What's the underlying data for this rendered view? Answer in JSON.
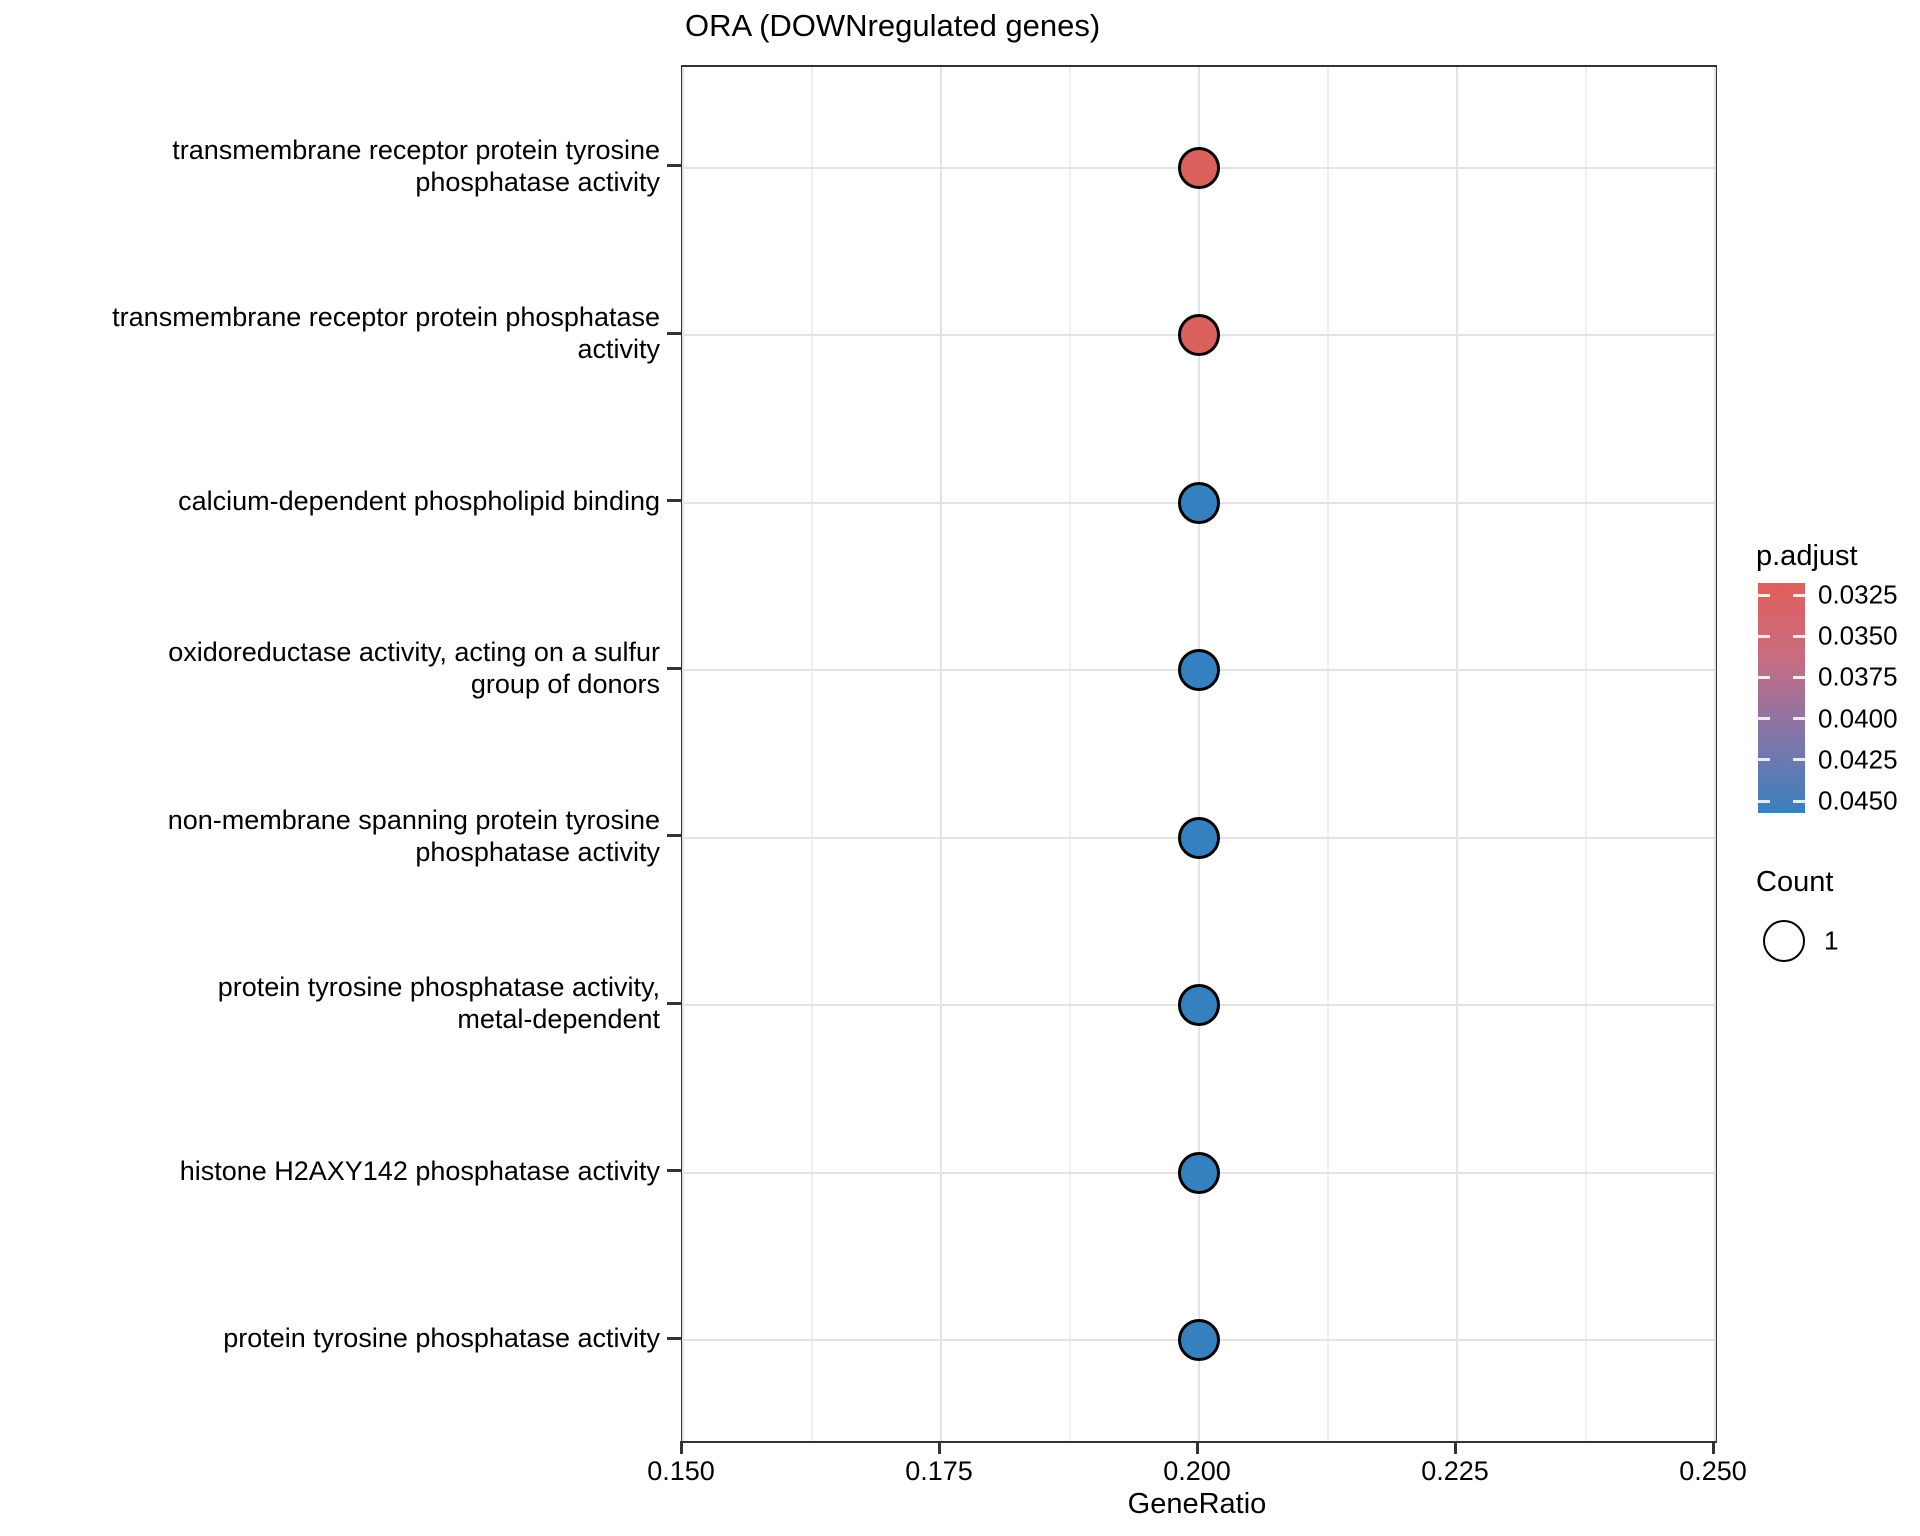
{
  "title": "ORA (DOWNregulated genes)",
  "axes": {
    "x_label": "GeneRatio",
    "x_tick_labels": [
      "0.150",
      "0.175",
      "0.200",
      "0.225",
      "0.250"
    ],
    "x_tick_values": [
      0.15,
      0.175,
      0.2,
      0.225,
      0.25
    ],
    "x_minor_values": [
      0.1625,
      0.1875,
      0.2125,
      0.2375
    ],
    "x_range": [
      0.15,
      0.25
    ]
  },
  "legend": {
    "p_adjust": {
      "title": "p.adjust",
      "tick_labels": [
        "0.0325",
        "0.0350",
        "0.0375",
        "0.0400",
        "0.0425",
        "0.0450"
      ],
      "tick_values": [
        0.0325,
        0.035,
        0.0375,
        0.04,
        0.0425,
        0.045
      ],
      "color_top": "#E05E5B",
      "color_mid": "#A67199",
      "color_bottom": "#3A80BE"
    },
    "count": {
      "title": "Count",
      "key_label": "1"
    }
  },
  "chart_data": {
    "type": "scatter",
    "subtype": "dotplot",
    "title": "ORA (DOWNregulated genes)",
    "xlabel": "GeneRatio",
    "xlim": [
      0.15,
      0.25
    ],
    "grid": true,
    "legend_position": "right",
    "categories": [
      "transmembrane receptor protein tyrosine\nphosphatase activity",
      "transmembrane receptor protein phosphatase\nactivity",
      "calcium-dependent phospholipid binding",
      "oxidoreductase activity, acting on a sulfur\ngroup of donors",
      "non-membrane spanning protein tyrosine\nphosphatase activity",
      "protein tyrosine phosphatase activity,\nmetal-dependent",
      "histone H2AXY142 phosphatase activity",
      "protein tyrosine phosphatase activity"
    ],
    "x": [
      0.2,
      0.2,
      0.2,
      0.2,
      0.2,
      0.2,
      0.2,
      0.2
    ],
    "count": [
      1,
      1,
      1,
      1,
      1,
      1,
      1,
      1
    ],
    "p_adjust_est": [
      0.032,
      0.032,
      0.046,
      0.046,
      0.046,
      0.046,
      0.046,
      0.046
    ],
    "point_colors": [
      "#DB615D",
      "#DB615D",
      "#3580BE",
      "#3580BE",
      "#3580BE",
      "#3580BE",
      "#3580BE",
      "#3580BE"
    ]
  }
}
